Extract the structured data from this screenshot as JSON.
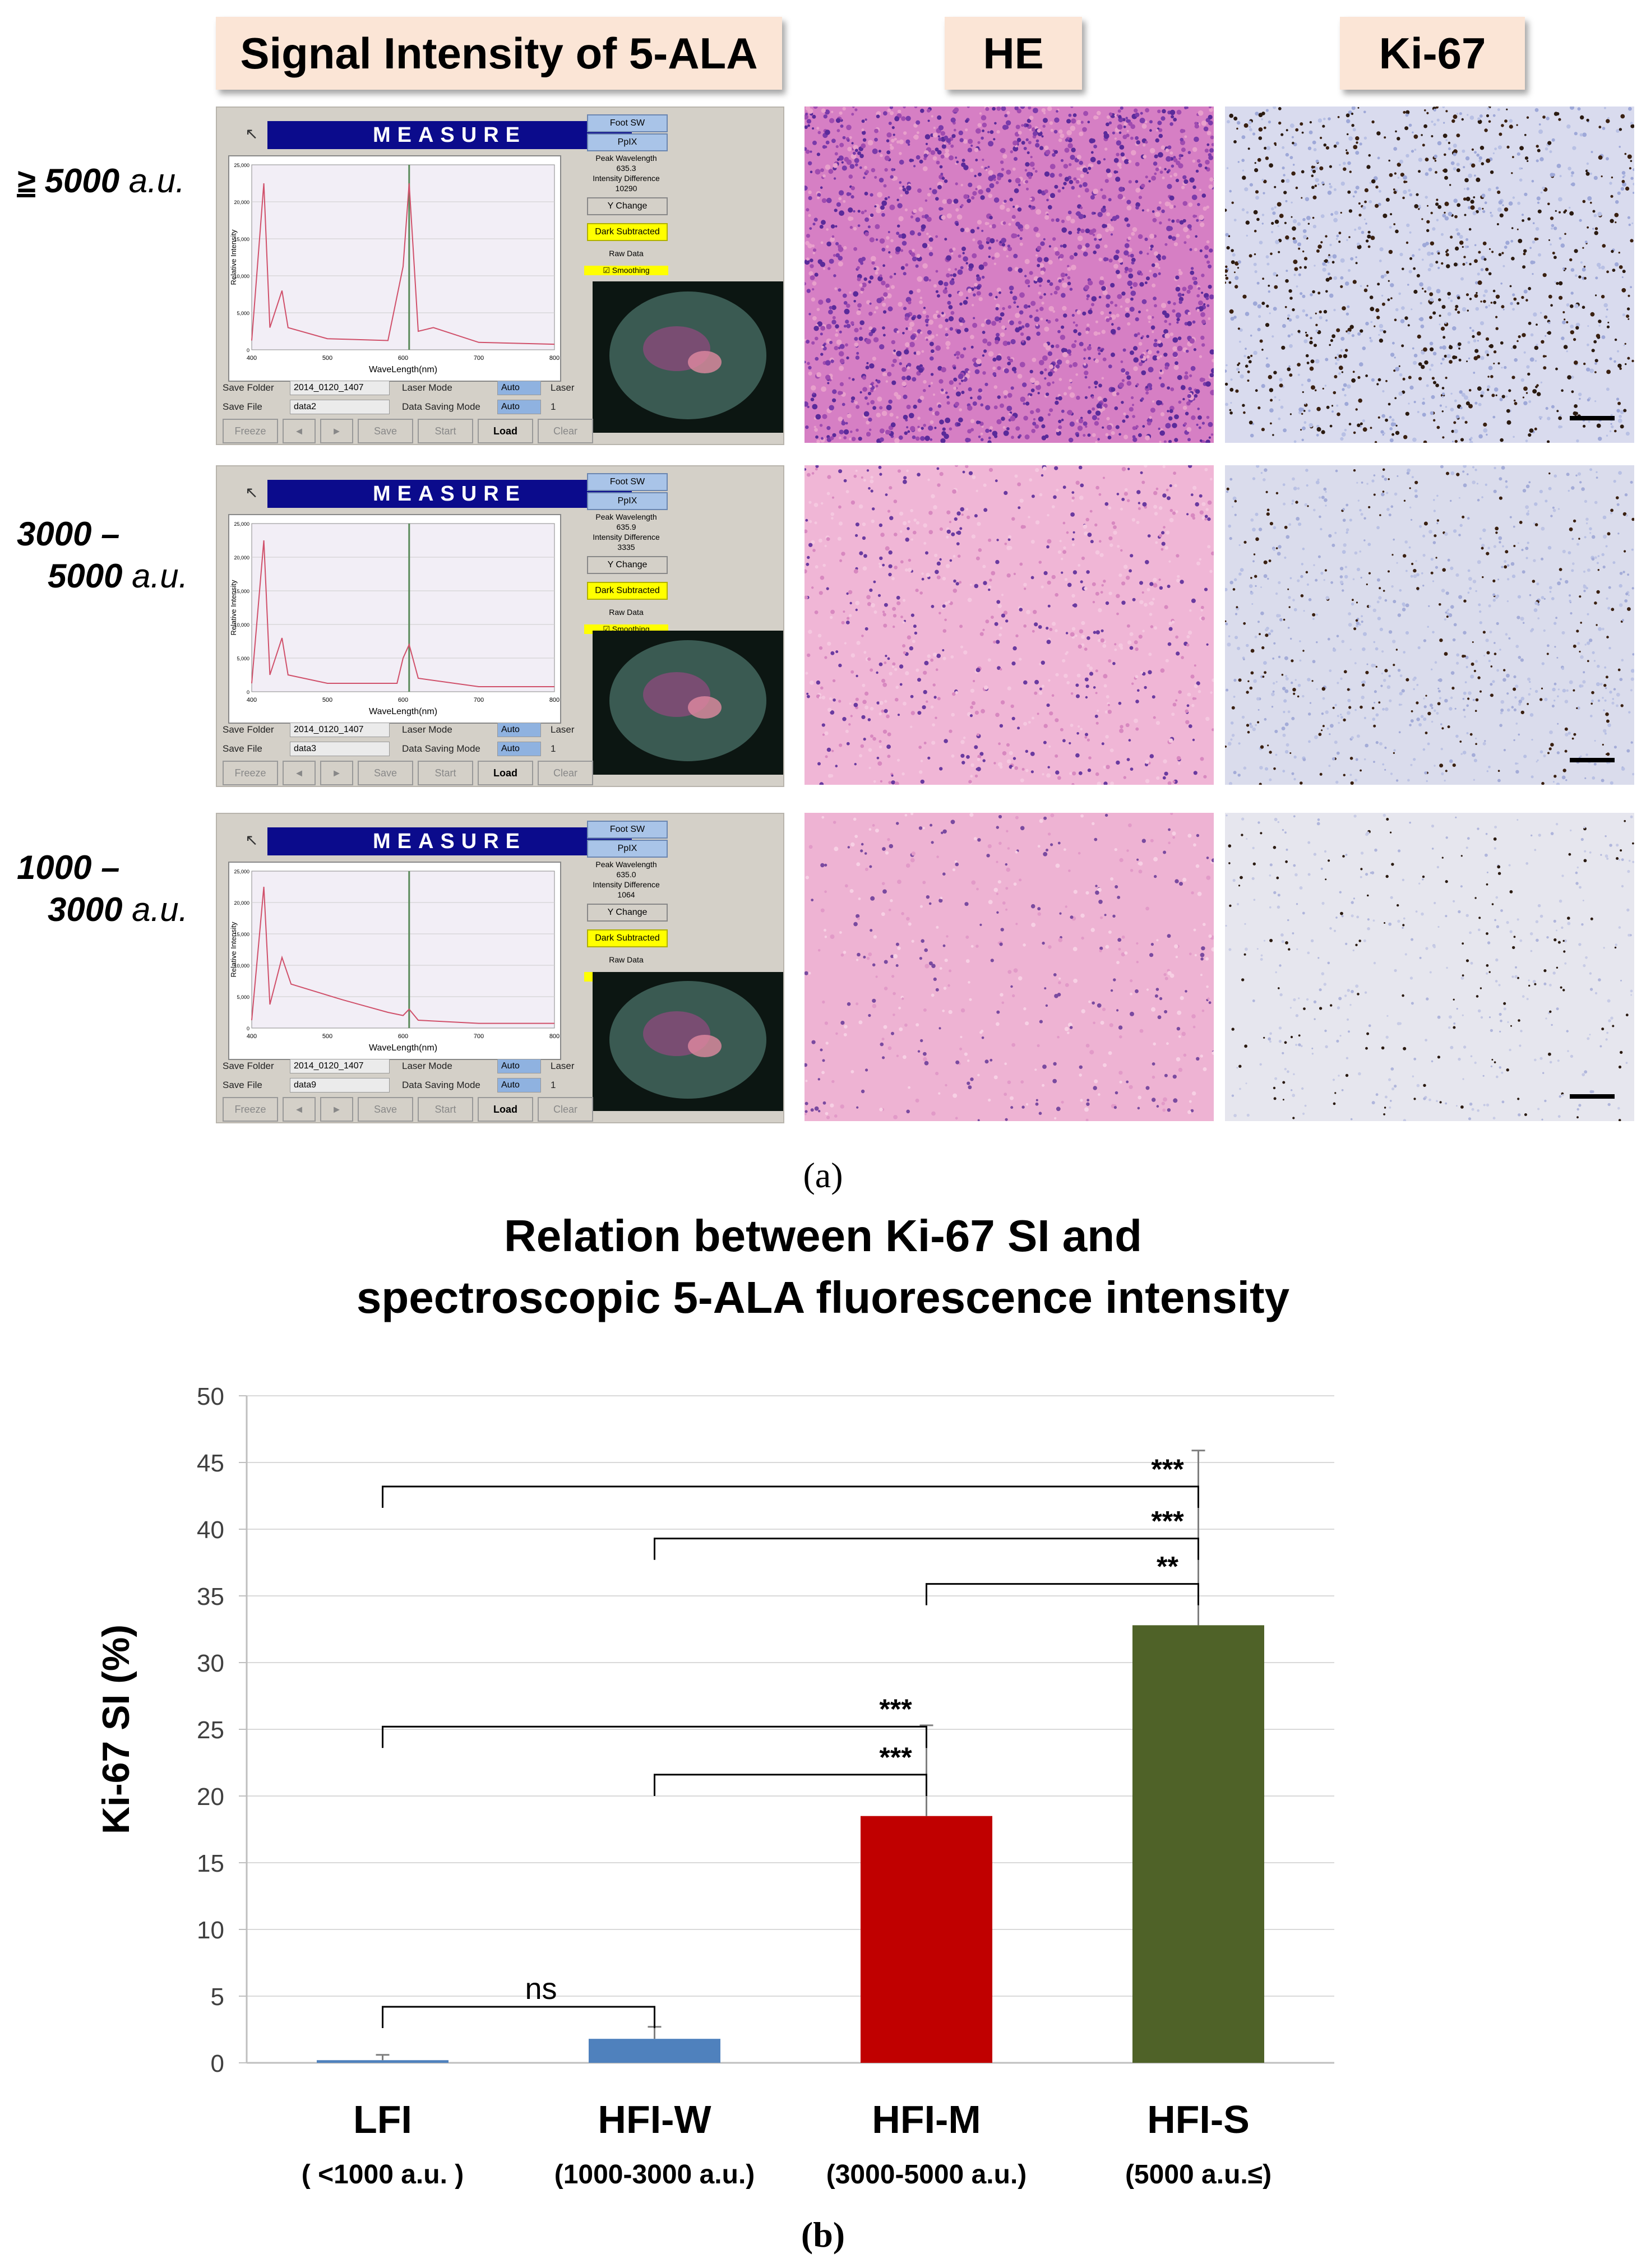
{
  "panel_a": {
    "headers": [
      "Signal Intensity of 5-ALA",
      "HE",
      "Ki-67"
    ],
    "rows": [
      {
        "label_line1": "5000",
        "label_prefix": "≥",
        "label_unit": "a.u.",
        "save_folder": "2014_0120_1407",
        "save_file": "data2",
        "intensity_difference": "10290",
        "peak_wavelength": "635.3"
      },
      {
        "label_line1": "3000 –",
        "label_line2": "5000",
        "label_unit": "a.u.",
        "save_folder": "2014_0120_1407",
        "save_file": "data3",
        "intensity_difference": "3335",
        "peak_wavelength": "635.9"
      },
      {
        "label_line1": "1000 –",
        "label_line2": "3000",
        "label_unit": "a.u.",
        "save_folder": "2014_0120_1407",
        "save_file": "data9",
        "intensity_difference": "1064",
        "peak_wavelength": "635.0"
      }
    ],
    "software": {
      "measure_title": "MEASURE",
      "foot_sw": "Foot SW",
      "ppix": "PpIX",
      "peak_wavelength_label": "Peak Wavelength",
      "intensity_difference_label": "Intensity Difference",
      "y_change": "Y Change",
      "dark_subtracted": "Dark Subtracted",
      "raw_data": "Raw Data",
      "smoothing": "Smoothing",
      "wavelength_axis": "WaveLength(nm)",
      "relative_intensity_axis": "Relative Intensity",
      "save_folder_label": "Save Folder",
      "save_file_label": "Save File",
      "laser_mode_label": "Laser Mode",
      "data_saving_mode_label": "Data Saving Mode",
      "auto": "Auto",
      "laser": "Laser",
      "one": "1",
      "buttons": [
        "Freeze",
        "◄",
        "►",
        "Save",
        "Start",
        "Load",
        "Clear"
      ],
      "x_ticks": [
        "400",
        "500",
        "600",
        "700",
        "800"
      ],
      "y_ticks": [
        "25,000",
        "20,000",
        "15,000",
        "10,000",
        "5,000",
        "0"
      ]
    },
    "caption": "(a)"
  },
  "chart_data": {
    "type": "bar",
    "title_line1": "Relation between Ki-67 SI and",
    "title_line2": "spectroscopic 5-ALA fluorescence intensity",
    "ylabel": "Ki-67 SI (%)",
    "ylim": [
      0,
      50
    ],
    "yticks": [
      0,
      5,
      10,
      15,
      20,
      25,
      30,
      35,
      40,
      45,
      50
    ],
    "categories": [
      "LFI",
      "HFI-W",
      "HFI-M",
      "HFI-S"
    ],
    "subcategories": [
      "( <1000 a.u. )",
      "(1000-3000 a.u.)",
      "(3000-5000 a.u.)",
      "(5000 a.u.≤)"
    ],
    "values": [
      0.2,
      1.8,
      18.5,
      32.8
    ],
    "errors": [
      0.4,
      0.9,
      6.8,
      13.1
    ],
    "colors": [
      "#4f81bd",
      "#4f81bd",
      "#c00000",
      "#4f6228"
    ],
    "grid": true,
    "significance": [
      {
        "from": 0,
        "to": 3,
        "y": 43.2,
        "label": "***"
      },
      {
        "from": 1,
        "to": 3,
        "y": 39.3,
        "label": "***"
      },
      {
        "from": 2,
        "to": 3,
        "y": 35.9,
        "label": "**"
      },
      {
        "from": 0,
        "to": 2,
        "y": 25.2,
        "label": "***"
      },
      {
        "from": 1,
        "to": 2,
        "y": 21.6,
        "label": "***"
      },
      {
        "from": 0,
        "to": 1,
        "y": 4.2,
        "label": "ns"
      }
    ],
    "caption": "(b)"
  }
}
